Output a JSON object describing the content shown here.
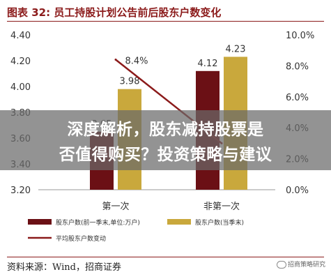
{
  "header": {
    "title": "图表 32:  员工持股计划公告前后股东户数变化"
  },
  "overlay": {
    "line1": "深度解析，股东减持股票是",
    "line2": "否值得购买？投资策略与建议"
  },
  "footer": {
    "source": "资料来源：Wind，招商证券",
    "watermark": "招商策略研究"
  },
  "colors": {
    "bar_before": "#6b1015",
    "bar_after": "#c9a83c",
    "line": "#8b1a1a",
    "title": "#8b1a1a"
  },
  "chart_data": {
    "type": "bar",
    "categories": [
      "第一次",
      "非第一次"
    ],
    "series": [
      {
        "name": "股东户数(前一季末,单位:万户)",
        "values": [
          3.65,
          4.12
        ],
        "labels": [
          "3.65",
          "4.12"
        ],
        "axis": "left",
        "kind": "bar"
      },
      {
        "name": "股东户数(当季末)",
        "values": [
          3.98,
          4.23
        ],
        "labels": [
          "3.98",
          "4.23"
        ],
        "axis": "left",
        "kind": "bar"
      },
      {
        "name": "平均股东户数变动",
        "values": [
          8.4,
          3.0
        ],
        "labels": [
          "8.4%",
          ""
        ],
        "axis": "right",
        "kind": "line"
      }
    ],
    "y_left": {
      "min": 3.2,
      "max": 4.4,
      "ticks": [
        "3.20",
        "3.40",
        "3.60",
        "3.80",
        "4.00",
        "4.20",
        "4.40"
      ]
    },
    "y_right": {
      "min": 0,
      "max": 10,
      "ticks": [
        "0.0%",
        "2.0%",
        "4.0%",
        "6.0%",
        "8.0%",
        "10.0%"
      ]
    },
    "legend_position": "bottom",
    "grid": false
  }
}
